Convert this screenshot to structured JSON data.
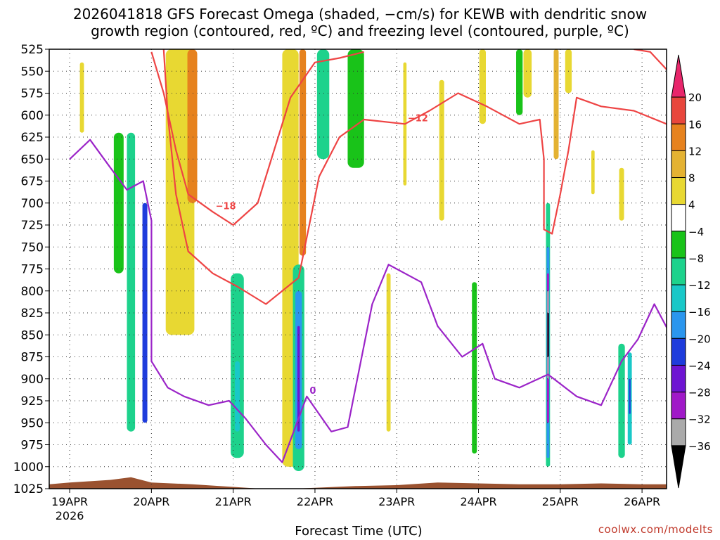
{
  "title_line1": "2026041818 GFS Forecast Omega (shaded, −cm/s) for KEWB with dendritic snow",
  "title_line2": "growth region (contoured, red, ºC) and freezing level (contoured, purple, ºC)",
  "credit": "coolwx.com/modelts",
  "chart_data": {
    "type": "heatmap",
    "xlabel": "Forecast Time (UTC)",
    "x_ticks": [
      "19APR",
      "20APR",
      "21APR",
      "22APR",
      "23APR",
      "24APR",
      "25APR",
      "26APR"
    ],
    "x_first_year": "2026",
    "y_ticks": [
      525,
      550,
      575,
      600,
      625,
      650,
      675,
      700,
      725,
      750,
      775,
      800,
      825,
      850,
      875,
      900,
      925,
      950,
      975,
      1000,
      1025
    ],
    "y_range": [
      525,
      1025
    ],
    "y_inverted": true,
    "grid": true,
    "colorbar": {
      "labels": [
        "20",
        "16",
        "12",
        "8",
        "4",
        "−4",
        "−8",
        "−12",
        "−16",
        "−20",
        "−24",
        "−28",
        "−32",
        "−36"
      ],
      "colors": [
        "#e8266b",
        "#e8463c",
        "#e6821e",
        "#e4b232",
        "#e8d832",
        "#ffffff",
        "#19c319",
        "#1dd28c",
        "#19c8c8",
        "#2b96ee",
        "#1e3cdc",
        "#6e14d2",
        "#a019c8",
        "#aaaaaa",
        "#000000"
      ]
    },
    "omega_regions": [
      {
        "t": 0.15,
        "p1": 540,
        "p2": 620,
        "w": 0.05,
        "v": 6
      },
      {
        "t": 0.6,
        "p1": 620,
        "p2": 780,
        "w": 0.12,
        "v": -6
      },
      {
        "t": 0.75,
        "p1": 620,
        "p2": 960,
        "w": 0.1,
        "v": -8
      },
      {
        "t": 0.92,
        "p1": 700,
        "p2": 950,
        "w": 0.06,
        "v": -20
      },
      {
        "t": 1.35,
        "p1": 525,
        "p2": 850,
        "w": 0.35,
        "v": 6
      },
      {
        "t": 1.5,
        "p1": 525,
        "p2": 700,
        "w": 0.12,
        "v": 12
      },
      {
        "t": 2.05,
        "p1": 780,
        "p2": 990,
        "w": 0.16,
        "v": -8
      },
      {
        "t": 2.05,
        "p1": 880,
        "p2": 960,
        "w": 0.06,
        "v": -14
      },
      {
        "t": 2.7,
        "p1": 525,
        "p2": 1000,
        "w": 0.2,
        "v": 6
      },
      {
        "t": 2.85,
        "p1": 525,
        "p2": 760,
        "w": 0.08,
        "v": 12
      },
      {
        "t": 2.8,
        "p1": 770,
        "p2": 1005,
        "w": 0.14,
        "v": -10
      },
      {
        "t": 2.8,
        "p1": 800,
        "p2": 980,
        "w": 0.08,
        "v": -16
      },
      {
        "t": 2.8,
        "p1": 840,
        "p2": 960,
        "w": 0.03,
        "v": -24
      },
      {
        "t": 3.1,
        "p1": 525,
        "p2": 650,
        "w": 0.15,
        "v": -8
      },
      {
        "t": 3.5,
        "p1": 525,
        "p2": 660,
        "w": 0.2,
        "v": -6
      },
      {
        "t": 3.9,
        "p1": 780,
        "p2": 960,
        "w": 0.05,
        "v": 6
      },
      {
        "t": 4.1,
        "p1": 540,
        "p2": 680,
        "w": 0.04,
        "v": 6
      },
      {
        "t": 4.55,
        "p1": 560,
        "p2": 720,
        "w": 0.06,
        "v": 6
      },
      {
        "t": 4.95,
        "p1": 790,
        "p2": 985,
        "w": 0.06,
        "v": -6
      },
      {
        "t": 5.05,
        "p1": 525,
        "p2": 610,
        "w": 0.08,
        "v": 6
      },
      {
        "t": 5.5,
        "p1": 525,
        "p2": 600,
        "w": 0.08,
        "v": -6
      },
      {
        "t": 5.6,
        "p1": 525,
        "p2": 580,
        "w": 0.1,
        "v": 6
      },
      {
        "t": 5.85,
        "p1": 700,
        "p2": 1000,
        "w": 0.05,
        "v": -8
      },
      {
        "t": 5.85,
        "p1": 750,
        "p2": 990,
        "w": 0.035,
        "v": -16
      },
      {
        "t": 5.85,
        "p1": 780,
        "p2": 950,
        "w": 0.025,
        "v": -28
      },
      {
        "t": 5.85,
        "p1": 800,
        "p2": 900,
        "w": 0.02,
        "v": -32
      },
      {
        "t": 5.85,
        "p1": 825,
        "p2": 875,
        "w": 0.015,
        "v": -36
      },
      {
        "t": 5.95,
        "p1": 525,
        "p2": 650,
        "w": 0.06,
        "v": 10
      },
      {
        "t": 6.1,
        "p1": 525,
        "p2": 575,
        "w": 0.08,
        "v": 6
      },
      {
        "t": 6.4,
        "p1": 640,
        "p2": 690,
        "w": 0.04,
        "v": 6
      },
      {
        "t": 6.75,
        "p1": 660,
        "p2": 720,
        "w": 0.06,
        "v": 6
      },
      {
        "t": 6.75,
        "p1": 860,
        "p2": 990,
        "w": 0.08,
        "v": -8
      },
      {
        "t": 6.85,
        "p1": 870,
        "p2": 975,
        "w": 0.05,
        "v": -14
      },
      {
        "t": 6.85,
        "p1": 900,
        "p2": 940,
        "w": 0.02,
        "v": -22
      }
    ],
    "contours": [
      {
        "label": "−18",
        "color": "#ee4444",
        "points": [
          [
            1.0,
            528
          ],
          [
            1.15,
            575
          ],
          [
            1.3,
            640
          ],
          [
            1.45,
            690
          ],
          [
            1.75,
            710
          ],
          [
            2.0,
            725
          ],
          [
            2.3,
            700
          ],
          [
            2.7,
            580
          ],
          [
            3.0,
            540
          ],
          [
            3.3,
            535
          ],
          [
            3.6,
            528
          ]
        ]
      },
      {
        "label": "−12",
        "color": "#ee4444",
        "points": [
          [
            1.15,
            525
          ],
          [
            1.2,
            600
          ],
          [
            1.3,
            690
          ],
          [
            1.45,
            755
          ],
          [
            1.75,
            780
          ],
          [
            2.05,
            795
          ],
          [
            2.4,
            815
          ],
          [
            2.8,
            785
          ],
          [
            3.05,
            670
          ],
          [
            3.3,
            625
          ],
          [
            3.6,
            605
          ],
          [
            4.1,
            610
          ],
          [
            4.4,
            595
          ],
          [
            4.75,
            575
          ],
          [
            5.1,
            590
          ],
          [
            5.5,
            610
          ],
          [
            5.75,
            605
          ],
          [
            5.8,
            650
          ],
          [
            5.8,
            730
          ],
          [
            5.9,
            735
          ],
          [
            6.0,
            690
          ],
          [
            6.1,
            640
          ],
          [
            6.2,
            580
          ],
          [
            6.5,
            590
          ],
          [
            6.9,
            595
          ],
          [
            7.3,
            610
          ]
        ]
      },
      {
        "label": "−12",
        "color": "#ee4444",
        "points": [
          [
            6.9,
            525
          ],
          [
            7.1,
            528
          ],
          [
            7.3,
            548
          ]
        ]
      },
      {
        "label": "0",
        "color": "#9b24c8",
        "points": [
          [
            0.0,
            650
          ],
          [
            0.25,
            628
          ],
          [
            0.5,
            660
          ],
          [
            0.7,
            685
          ],
          [
            0.9,
            675
          ],
          [
            1.0,
            720
          ],
          [
            1.0,
            880
          ],
          [
            1.2,
            910
          ],
          [
            1.4,
            920
          ],
          [
            1.7,
            930
          ],
          [
            1.95,
            925
          ],
          [
            2.15,
            945
          ],
          [
            2.4,
            975
          ],
          [
            2.6,
            995
          ],
          [
            2.9,
            920
          ],
          [
            3.2,
            960
          ],
          [
            3.4,
            955
          ],
          [
            3.7,
            815
          ],
          [
            3.9,
            770
          ],
          [
            4.3,
            790
          ],
          [
            4.5,
            840
          ],
          [
            4.8,
            875
          ],
          [
            5.05,
            860
          ],
          [
            5.2,
            900
          ],
          [
            5.5,
            910
          ],
          [
            5.85,
            895
          ],
          [
            6.2,
            920
          ],
          [
            6.5,
            930
          ],
          [
            6.75,
            880
          ],
          [
            6.95,
            855
          ],
          [
            7.15,
            815
          ],
          [
            7.35,
            850
          ]
        ]
      }
    ]
  }
}
